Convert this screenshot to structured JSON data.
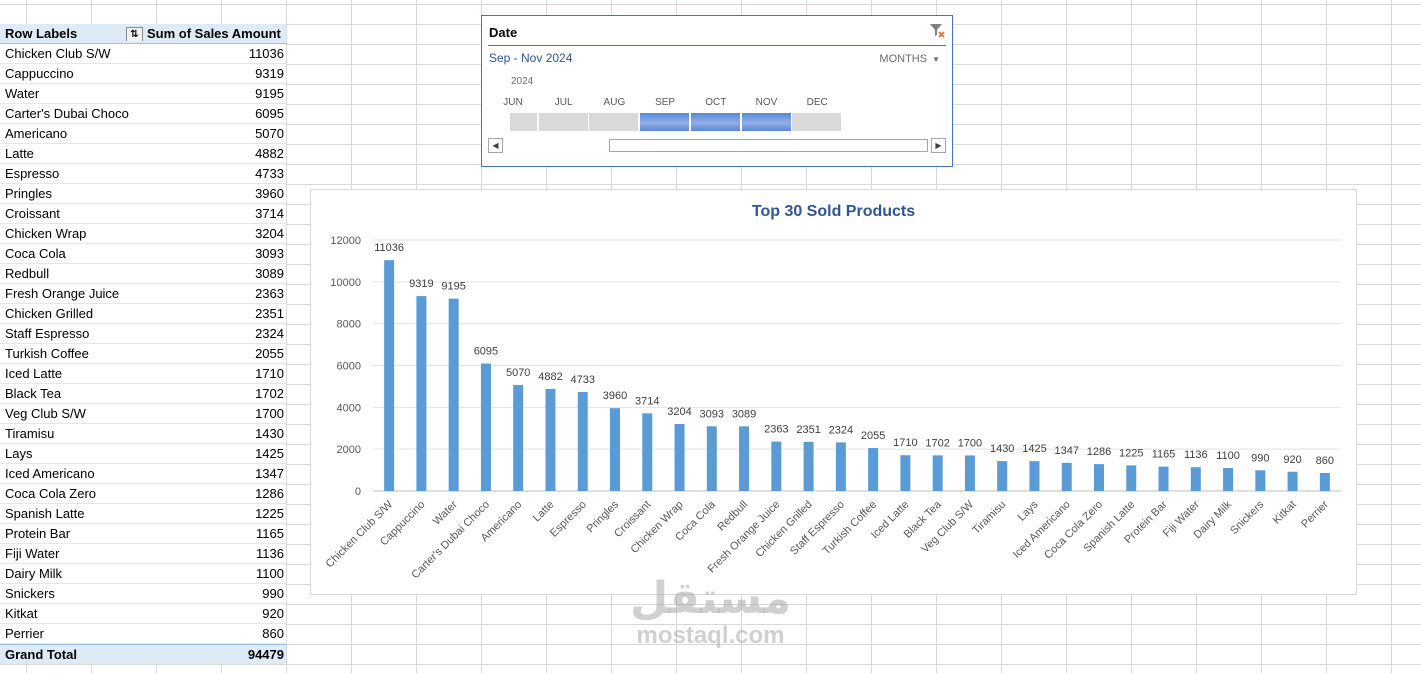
{
  "pivot": {
    "header_label": "Row Labels",
    "header_value": "Sum of Sales Amount",
    "rows": [
      {
        "label": "Chicken Club S/W",
        "value": "11036"
      },
      {
        "label": "Cappuccino",
        "value": "9319"
      },
      {
        "label": "Water",
        "value": "9195"
      },
      {
        "label": "Carter's Dubai Choco",
        "value": "6095"
      },
      {
        "label": "Americano",
        "value": "5070"
      },
      {
        "label": "Latte",
        "value": "4882"
      },
      {
        "label": "Espresso",
        "value": "4733"
      },
      {
        "label": "Pringles",
        "value": "3960"
      },
      {
        "label": "Croissant",
        "value": "3714"
      },
      {
        "label": "Chicken Wrap",
        "value": "3204"
      },
      {
        "label": "Coca Cola",
        "value": "3093"
      },
      {
        "label": "Redbull",
        "value": "3089"
      },
      {
        "label": "Fresh Orange Juice",
        "value": "2363"
      },
      {
        "label": "Chicken Grilled",
        "value": "2351"
      },
      {
        "label": "Staff Espresso",
        "value": "2324"
      },
      {
        "label": "Turkish Coffee",
        "value": "2055"
      },
      {
        "label": "Iced Latte",
        "value": "1710"
      },
      {
        "label": "Black Tea",
        "value": "1702"
      },
      {
        "label": "Veg Club S/W",
        "value": "1700"
      },
      {
        "label": "Tiramisu",
        "value": "1430"
      },
      {
        "label": "Lays",
        "value": "1425"
      },
      {
        "label": "Iced Americano",
        "value": "1347"
      },
      {
        "label": "Coca Cola Zero",
        "value": "1286"
      },
      {
        "label": "Spanish Latte",
        "value": "1225"
      },
      {
        "label": "Protein Bar",
        "value": "1165"
      },
      {
        "label": "Fiji Water",
        "value": "1136"
      },
      {
        "label": "Dairy Milk",
        "value": "1100"
      },
      {
        "label": "Snickers",
        "value": "990"
      },
      {
        "label": "Kitkat",
        "value": "920"
      },
      {
        "label": "Perrier",
        "value": "860"
      }
    ],
    "total_label": "Grand Total",
    "total_value": "94479",
    "filter_icon": "sort-filter-icon"
  },
  "timeline": {
    "title": "Date",
    "range": "Sep - Nov 2024",
    "level": "MONTHS",
    "year": "2024",
    "months": [
      "JUN",
      "JUL",
      "AUG",
      "SEP",
      "OCT",
      "NOV",
      "DEC"
    ],
    "selected": [
      false,
      false,
      false,
      true,
      true,
      true,
      false
    ],
    "selection_color": "#5b87d6",
    "clear_icon": "clear-filter-icon"
  },
  "chart_data": {
    "type": "bar",
    "title": "Top 30 Sold Products",
    "xlabel": "",
    "ylabel": "",
    "ylim": [
      0,
      12000
    ],
    "yticks": [
      0,
      2000,
      4000,
      6000,
      8000,
      10000,
      12000
    ],
    "grid": true,
    "legend": "none",
    "bar_color": "#5b9bd5",
    "categories": [
      "Chicken Club S/W",
      "Cappuccino",
      "Water",
      "Carter's Dubai Choco",
      "Americano",
      "Latte",
      "Espresso",
      "Pringles",
      "Croissant",
      "Chicken Wrap",
      "Coca Cola",
      "Redbull",
      "Fresh Orange Juice",
      "Chicken Grilled",
      "Staff Espresso",
      "Turkish Coffee",
      "Iced Latte",
      "Black Tea",
      "Veg Club S/W",
      "Tiramisu",
      "Lays",
      "Iced Americano",
      "Coca Cola Zero",
      "Spanish Latte",
      "Protein Bar",
      "Fiji Water",
      "Dairy Milk",
      "Snickers",
      "Kitkat",
      "Perrier"
    ],
    "values": [
      11036,
      9319,
      9195,
      6095,
      5070,
      4882,
      4733,
      3960,
      3714,
      3204,
      3093,
      3089,
      2363,
      2351,
      2324,
      2055,
      1710,
      1702,
      1700,
      1430,
      1425,
      1347,
      1286,
      1225,
      1165,
      1136,
      1100,
      990,
      920,
      860
    ]
  },
  "watermark": {
    "arabic": "مستقل",
    "latin": "mostaql.com"
  }
}
